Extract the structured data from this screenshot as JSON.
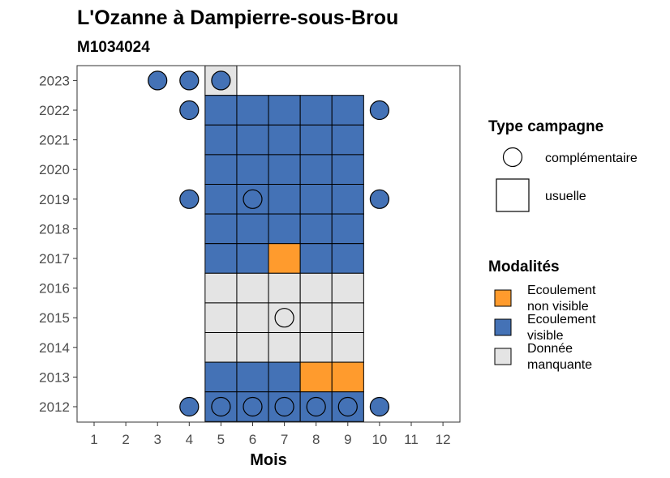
{
  "chart_data": {
    "type": "heatmap",
    "title": "L'Ozanne à Dampierre-sous-Brou",
    "subtitle": "M1034024",
    "xlabel": "Mois",
    "ylabel": "",
    "x_ticks": [
      1,
      2,
      3,
      4,
      5,
      6,
      7,
      8,
      9,
      10,
      11,
      12
    ],
    "y_ticks": [
      2012,
      2013,
      2014,
      2015,
      2016,
      2017,
      2018,
      2019,
      2020,
      2021,
      2022,
      2023
    ],
    "grid": false,
    "colors": {
      "ecoulement_non_visible": "#ff9b2d",
      "ecoulement_visible": "#4472b6",
      "donnee_manquante": "#e4e4e4"
    },
    "legend_type": {
      "title": "Type campagne",
      "entries": [
        {
          "label": "complémentaire",
          "shape": "circle"
        },
        {
          "label": "usuelle",
          "shape": "square"
        }
      ]
    },
    "legend_modalites": {
      "title": "Modalités",
      "entries": [
        {
          "key": "ecoulement_non_visible",
          "lines": [
            "Ecoulement",
            "non visible"
          ]
        },
        {
          "key": "ecoulement_visible",
          "lines": [
            "Ecoulement",
            "visible"
          ]
        },
        {
          "key": "donnee_manquante",
          "lines": [
            "Donnée",
            "manquante"
          ]
        }
      ]
    },
    "usuelle": [
      {
        "year": 2023,
        "month": 5,
        "modalite": "donnee_manquante"
      },
      {
        "year": 2022,
        "month": 5,
        "modalite": "ecoulement_visible"
      },
      {
        "year": 2022,
        "month": 6,
        "modalite": "ecoulement_visible"
      },
      {
        "year": 2022,
        "month": 7,
        "modalite": "ecoulement_visible"
      },
      {
        "year": 2022,
        "month": 8,
        "modalite": "ecoulement_visible"
      },
      {
        "year": 2022,
        "month": 9,
        "modalite": "ecoulement_visible"
      },
      {
        "year": 2021,
        "month": 5,
        "modalite": "ecoulement_visible"
      },
      {
        "year": 2021,
        "month": 6,
        "modalite": "ecoulement_visible"
      },
      {
        "year": 2021,
        "month": 7,
        "modalite": "ecoulement_visible"
      },
      {
        "year": 2021,
        "month": 8,
        "modalite": "ecoulement_visible"
      },
      {
        "year": 2021,
        "month": 9,
        "modalite": "ecoulement_visible"
      },
      {
        "year": 2020,
        "month": 5,
        "modalite": "ecoulement_visible"
      },
      {
        "year": 2020,
        "month": 6,
        "modalite": "ecoulement_visible"
      },
      {
        "year": 2020,
        "month": 7,
        "modalite": "ecoulement_visible"
      },
      {
        "year": 2020,
        "month": 8,
        "modalite": "ecoulement_visible"
      },
      {
        "year": 2020,
        "month": 9,
        "modalite": "ecoulement_visible"
      },
      {
        "year": 2019,
        "month": 5,
        "modalite": "ecoulement_visible"
      },
      {
        "year": 2019,
        "month": 6,
        "modalite": "ecoulement_visible"
      },
      {
        "year": 2019,
        "month": 7,
        "modalite": "ecoulement_visible"
      },
      {
        "year": 2019,
        "month": 8,
        "modalite": "ecoulement_visible"
      },
      {
        "year": 2019,
        "month": 9,
        "modalite": "ecoulement_visible"
      },
      {
        "year": 2018,
        "month": 5,
        "modalite": "ecoulement_visible"
      },
      {
        "year": 2018,
        "month": 6,
        "modalite": "ecoulement_visible"
      },
      {
        "year": 2018,
        "month": 7,
        "modalite": "ecoulement_visible"
      },
      {
        "year": 2018,
        "month": 8,
        "modalite": "ecoulement_visible"
      },
      {
        "year": 2018,
        "month": 9,
        "modalite": "ecoulement_visible"
      },
      {
        "year": 2017,
        "month": 5,
        "modalite": "ecoulement_visible"
      },
      {
        "year": 2017,
        "month": 6,
        "modalite": "ecoulement_visible"
      },
      {
        "year": 2017,
        "month": 7,
        "modalite": "ecoulement_non_visible"
      },
      {
        "year": 2017,
        "month": 8,
        "modalite": "ecoulement_visible"
      },
      {
        "year": 2017,
        "month": 9,
        "modalite": "ecoulement_visible"
      },
      {
        "year": 2016,
        "month": 5,
        "modalite": "donnee_manquante"
      },
      {
        "year": 2016,
        "month": 6,
        "modalite": "donnee_manquante"
      },
      {
        "year": 2016,
        "month": 7,
        "modalite": "donnee_manquante"
      },
      {
        "year": 2016,
        "month": 8,
        "modalite": "donnee_manquante"
      },
      {
        "year": 2016,
        "month": 9,
        "modalite": "donnee_manquante"
      },
      {
        "year": 2015,
        "month": 5,
        "modalite": "donnee_manquante"
      },
      {
        "year": 2015,
        "month": 6,
        "modalite": "donnee_manquante"
      },
      {
        "year": 2015,
        "month": 7,
        "modalite": "donnee_manquante"
      },
      {
        "year": 2015,
        "month": 8,
        "modalite": "donnee_manquante"
      },
      {
        "year": 2015,
        "month": 9,
        "modalite": "donnee_manquante"
      },
      {
        "year": 2014,
        "month": 5,
        "modalite": "donnee_manquante"
      },
      {
        "year": 2014,
        "month": 6,
        "modalite": "donnee_manquante"
      },
      {
        "year": 2014,
        "month": 7,
        "modalite": "donnee_manquante"
      },
      {
        "year": 2014,
        "month": 8,
        "modalite": "donnee_manquante"
      },
      {
        "year": 2014,
        "month": 9,
        "modalite": "donnee_manquante"
      },
      {
        "year": 2013,
        "month": 5,
        "modalite": "ecoulement_visible"
      },
      {
        "year": 2013,
        "month": 6,
        "modalite": "ecoulement_visible"
      },
      {
        "year": 2013,
        "month": 7,
        "modalite": "ecoulement_visible"
      },
      {
        "year": 2013,
        "month": 8,
        "modalite": "ecoulement_non_visible"
      },
      {
        "year": 2013,
        "month": 9,
        "modalite": "ecoulement_non_visible"
      },
      {
        "year": 2012,
        "month": 5,
        "modalite": "ecoulement_visible"
      },
      {
        "year": 2012,
        "month": 6,
        "modalite": "ecoulement_visible"
      },
      {
        "year": 2012,
        "month": 7,
        "modalite": "ecoulement_visible"
      },
      {
        "year": 2012,
        "month": 8,
        "modalite": "ecoulement_visible"
      },
      {
        "year": 2012,
        "month": 9,
        "modalite": "ecoulement_visible"
      }
    ],
    "complementaire": [
      {
        "year": 2023,
        "month": 3,
        "modalite": "ecoulement_visible"
      },
      {
        "year": 2023,
        "month": 4,
        "modalite": "ecoulement_visible"
      },
      {
        "year": 2023,
        "month": 5,
        "modalite": "ecoulement_visible"
      },
      {
        "year": 2022,
        "month": 4,
        "modalite": "ecoulement_visible"
      },
      {
        "year": 2022,
        "month": 10,
        "modalite": "ecoulement_visible"
      },
      {
        "year": 2019,
        "month": 4,
        "modalite": "ecoulement_visible"
      },
      {
        "year": 2019,
        "month": 6,
        "modalite": "ecoulement_visible"
      },
      {
        "year": 2019,
        "month": 10,
        "modalite": "ecoulement_visible"
      },
      {
        "year": 2015,
        "month": 7,
        "modalite": "donnee_manquante"
      },
      {
        "year": 2012,
        "month": 4,
        "modalite": "ecoulement_visible"
      },
      {
        "year": 2012,
        "month": 5,
        "modalite": "ecoulement_visible"
      },
      {
        "year": 2012,
        "month": 6,
        "modalite": "ecoulement_visible"
      },
      {
        "year": 2012,
        "month": 7,
        "modalite": "ecoulement_visible"
      },
      {
        "year": 2012,
        "month": 8,
        "modalite": "ecoulement_visible"
      },
      {
        "year": 2012,
        "month": 9,
        "modalite": "ecoulement_visible"
      },
      {
        "year": 2012,
        "month": 10,
        "modalite": "ecoulement_visible"
      }
    ]
  }
}
